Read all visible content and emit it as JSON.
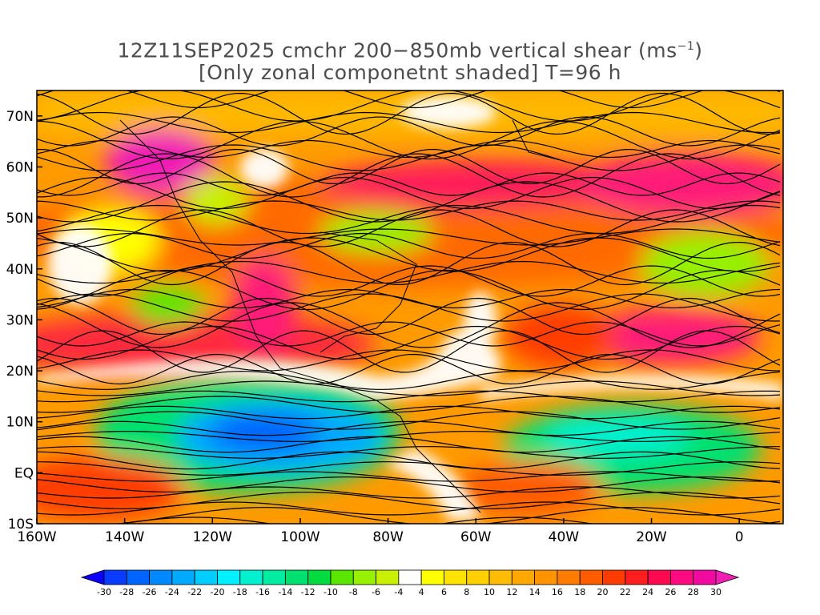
{
  "title": {
    "line1": "12Z11SEP2025 cmchr 200−850mb vertical shear (ms",
    "line1_unit_exp": "−1",
    "line1_end": ")",
    "line2": "[Only zonal componetnt shaded] T=96 h"
  },
  "map": {
    "lon_labels": [
      "160W",
      "140W",
      "120W",
      "100W",
      "80W",
      "60W",
      "40W",
      "20W",
      "0"
    ],
    "lat_labels": [
      "70N",
      "60N",
      "50N",
      "40N",
      "30N",
      "20N",
      "10N",
      "EQ",
      "10S"
    ],
    "lon_range": [
      -160,
      10
    ],
    "lat_range": [
      -10,
      75
    ]
  },
  "colorbar": {
    "labels": [
      "-30",
      "-28",
      "-26",
      "-24",
      "-22",
      "-20",
      "-18",
      "-16",
      "-14",
      "-12",
      "-10",
      "-8",
      "-6",
      "-4",
      "4",
      "6",
      "8",
      "10",
      "12",
      "14",
      "16",
      "18",
      "20",
      "22",
      "24",
      "26",
      "28",
      "30"
    ],
    "colors": [
      "#0b00ff",
      "#0a3cff",
      "#0064ff",
      "#0088ff",
      "#00aaff",
      "#00cdff",
      "#00f0ff",
      "#00f0d0",
      "#00eca0",
      "#00e070",
      "#00dc40",
      "#5ae600",
      "#96f000",
      "#c8f000",
      "#ffffff",
      "#ffff00",
      "#ffe200",
      "#ffd000",
      "#ffbc00",
      "#ffa800",
      "#ff9400",
      "#ff7c00",
      "#ff5c00",
      "#ff3c00",
      "#ff1e1e",
      "#ff0a50",
      "#ff0a80",
      "#f00aa0",
      "#f01eb4"
    ]
  },
  "icons": {
    "streamlines": "wind-streamline-icon",
    "coastlines": "coastline-icon"
  }
}
